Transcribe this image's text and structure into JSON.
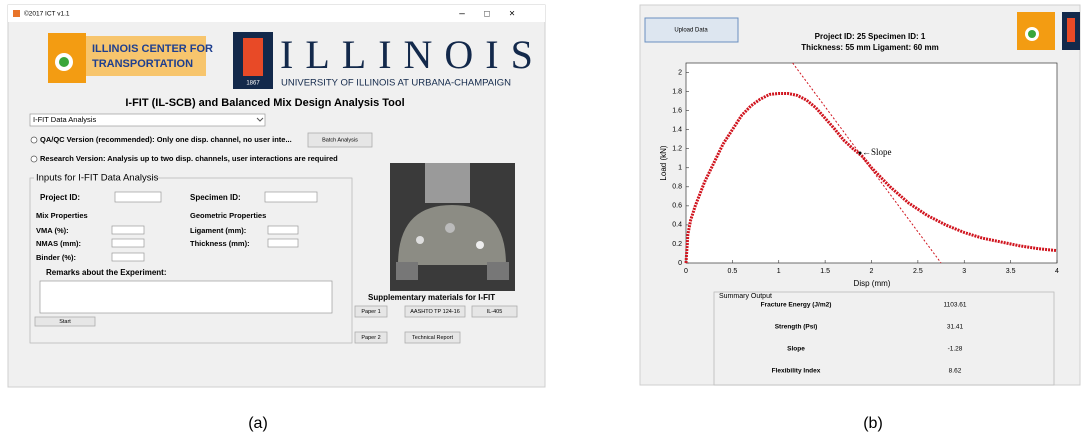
{
  "panel_a": {
    "window_title": "©2017 ICT v1.1",
    "window_controls": [
      "–",
      "□",
      "×"
    ],
    "ict_logo": {
      "line1": "ILLINOIS CENTER FOR",
      "line2": "TRANSPORTATION"
    },
    "uofi_logo": {
      "year": "1867",
      "name": "ILLINOIS",
      "subtitle": "UNIVERSITY OF ILLINOIS AT URBANA-CHAMPAIGN"
    },
    "heading": "I-FIT (IL-SCB) and Balanced Mix Design Analysis Tool",
    "dropdown": "I-FIT Data Analysis",
    "qa_option": "QA/QC Version (recommended): Only one disp. channel, no user inte...",
    "batch_button": "Batch Analysis",
    "research_option": "Research Version: Analysis up to two disp. channels, user interactions are required",
    "inputs": {
      "title": "Inputs for I-FIT Data Analysis",
      "project_id": "Project ID:",
      "specimen_id": "Specimen ID:",
      "mix_properties": "Mix Properties",
      "geometric_properties": "Geometric Properties",
      "vma": "VMA (%):",
      "nmas": "NMAS (mm):",
      "binder": "Binder (%):",
      "ligament": "Ligament (mm):",
      "thickness": "Thickness (mm):",
      "remarks": "Remarks about the Experiment:",
      "start": "Start"
    },
    "supplementary": {
      "title": "Supplementary materials for I-FIT",
      "buttons": [
        "Paper 1",
        "AASHTO TP 124-16",
        "IL-405",
        "Paper 2",
        "Technical Report"
      ]
    }
  },
  "panel_b": {
    "upload_button": "Upload Data",
    "info_line1": "Project ID: 25  Specimen ID: 1",
    "info_line2": "Thickness: 55  mm  Ligament: 60  mm",
    "chart": {
      "type": "line",
      "xlabel": "Disp (mm)",
      "ylabel": "Load (kN)",
      "xlim": [
        0,
        4
      ],
      "ylim": [
        0,
        2.1
      ],
      "xticks": [
        0,
        0.5,
        1,
        1.5,
        2,
        2.5,
        3,
        3.5,
        4
      ],
      "yticks": [
        0,
        0.2,
        0.4,
        0.6,
        0.8,
        1,
        1.2,
        1.4,
        1.6,
        1.8,
        2
      ],
      "series": [
        {
          "color": "#d0141e",
          "x": [
            0,
            0.02,
            0.05,
            0.1,
            0.2,
            0.3,
            0.4,
            0.5,
            0.6,
            0.7,
            0.8,
            0.9,
            1.0,
            1.1,
            1.2,
            1.3,
            1.4,
            1.5,
            1.6,
            1.7,
            1.8,
            1.9,
            2.0,
            2.2,
            2.4,
            2.6,
            2.8,
            3.0,
            3.2,
            3.4,
            3.6,
            3.8,
            4.0
          ],
          "values": [
            0,
            0.3,
            0.45,
            0.6,
            0.85,
            1.05,
            1.25,
            1.4,
            1.55,
            1.65,
            1.72,
            1.77,
            1.78,
            1.78,
            1.76,
            1.71,
            1.63,
            1.52,
            1.41,
            1.29,
            1.2,
            1.12,
            1.0,
            0.8,
            0.63,
            0.5,
            0.4,
            0.32,
            0.26,
            0.22,
            0.18,
            0.15,
            0.13
          ]
        },
        {
          "color": "#d0141e",
          "x": [
            1.15,
            2.75
          ],
          "values": [
            2.1,
            0
          ]
        }
      ],
      "annotation": "←Slope"
    },
    "summary": {
      "title": "Summary Output",
      "rows": [
        [
          "Fracture Energy (J/m2)",
          "1103.61"
        ],
        [
          "Strength (Psi)",
          "31.41"
        ],
        [
          "Slope",
          "-1.28"
        ],
        [
          "Flexibility Index",
          "8.62"
        ]
      ]
    }
  },
  "captions": [
    "(a)",
    "(b)"
  ]
}
